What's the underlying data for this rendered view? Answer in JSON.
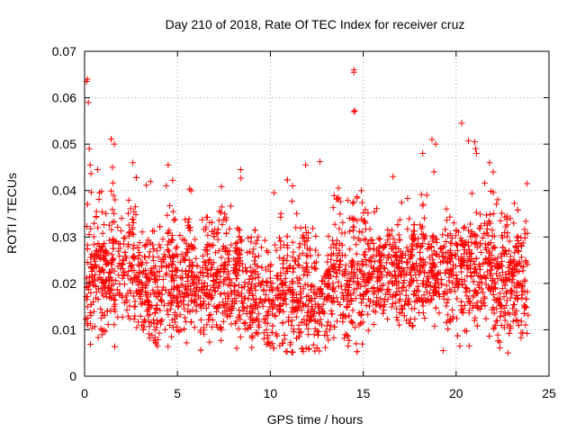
{
  "chart_data": {
    "type": "scatter",
    "title": "Day 210 of 2018, Rate Of TEC Index for receiver cruz",
    "xlabel": "GPS time / hours",
    "ylabel": "ROTI / TECUs",
    "xlim": [
      0,
      25
    ],
    "ylim": [
      0,
      0.07
    ],
    "x_ticks": [
      "0",
      "5",
      "10",
      "15",
      "20",
      "25"
    ],
    "y_ticks": [
      "0",
      "0.01",
      "0.02",
      "0.03",
      "0.04",
      "0.05",
      "0.06",
      "0.07"
    ],
    "grid": true,
    "marker": "plus",
    "color": "#ff0000",
    "series": [
      {
        "name": "ROTI",
        "points": [
          [
            0.1,
            0.0635
          ],
          [
            0.15,
            0.064
          ],
          [
            0.2,
            0.059
          ],
          [
            0.25,
            0.049
          ],
          [
            0.3,
            0.0455
          ],
          [
            0.7,
            0.0445
          ],
          [
            0.8,
            0.0395
          ],
          [
            1.6,
            0.05
          ],
          [
            1.5,
            0.045
          ],
          [
            2.6,
            0.046
          ],
          [
            4.5,
            0.0455
          ],
          [
            4.4,
            0.041
          ],
          [
            8.4,
            0.0445
          ],
          [
            10.2,
            0.0395
          ],
          [
            11.2,
            0.041
          ],
          [
            11.9,
            0.0455
          ],
          [
            14.5,
            0.066
          ],
          [
            14.5,
            0.0655
          ],
          [
            14.5,
            0.057
          ],
          [
            14.55,
            0.0572
          ],
          [
            14.9,
            0.04
          ],
          [
            16.6,
            0.043
          ],
          [
            18.2,
            0.048
          ],
          [
            18.7,
            0.051
          ],
          [
            18.9,
            0.05
          ],
          [
            20.3,
            0.0545
          ],
          [
            21.0,
            0.0505
          ],
          [
            21.05,
            0.049
          ],
          [
            21.1,
            0.048
          ],
          [
            21.8,
            0.046
          ],
          [
            22.0,
            0.044
          ],
          [
            23.1,
            0.033
          ],
          [
            23.2,
            0.028
          ],
          [
            19.3,
            0.0055
          ],
          [
            20.2,
            0.0065
          ]
        ]
      }
    ]
  }
}
